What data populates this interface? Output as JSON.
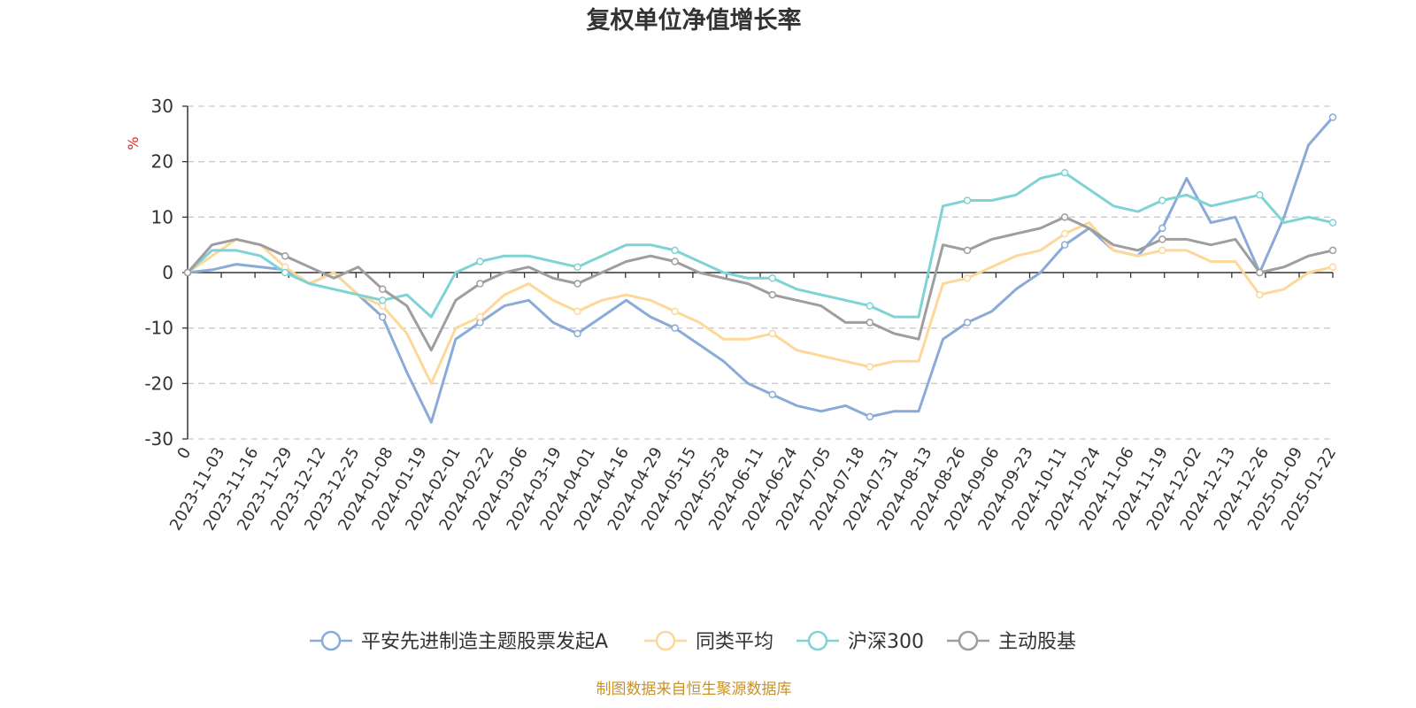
{
  "chart_data": {
    "type": "line",
    "title": "复权单位净值增长率",
    "ylabel": "%",
    "ylim": [
      -30,
      30
    ],
    "yticks": [
      30,
      20,
      10,
      0,
      -10,
      -20,
      -30
    ],
    "grid": true,
    "legend_position": "bottom",
    "source": "制图数据来自恒生聚源数据库",
    "x_tick_labels": [
      "0",
      "2023-11-03",
      "2023-11-16",
      "2023-11-29",
      "2023-12-12",
      "2023-12-25",
      "2024-01-08",
      "2024-01-19",
      "2024-02-01",
      "2024-02-22",
      "2024-03-06",
      "2024-03-19",
      "2024-04-01",
      "2024-04-16",
      "2024-04-29",
      "2024-05-15",
      "2024-05-28",
      "2024-06-11",
      "2024-06-24",
      "2024-07-05",
      "2024-07-18",
      "2024-07-31",
      "2024-08-13",
      "2024-08-26",
      "2024-09-06",
      "2024-09-23",
      "2024-10-11",
      "2024-10-24",
      "2024-11-06",
      "2024-11-19",
      "2024-12-02",
      "2024-12-13",
      "2024-12-26",
      "2025-01-09",
      "2025-01-22"
    ],
    "series": [
      {
        "name": "平安先进制造主题股票发起A",
        "color": "#8aaad8",
        "values": [
          0,
          0.5,
          1.5,
          1,
          0.5,
          -2,
          0,
          -4,
          -8,
          -18,
          -27,
          -12,
          -9,
          -6,
          -5,
          -9,
          -11,
          -8,
          -5,
          -8,
          -10,
          -13,
          -16,
          -20,
          -22,
          -24,
          -25,
          -24,
          -26,
          -25,
          -25,
          -12,
          -9,
          -7,
          -3,
          0,
          5,
          8,
          4,
          3,
          8,
          17,
          9,
          10,
          0,
          10,
          23,
          28
        ]
      },
      {
        "name": "同类平均",
        "color": "#fdd899",
        "values": [
          0,
          3,
          6,
          5,
          1,
          -2,
          0,
          -4,
          -6,
          -11,
          -20,
          -10,
          -8,
          -4,
          -2,
          -5,
          -7,
          -5,
          -4,
          -5,
          -7,
          -9,
          -12,
          -12,
          -11,
          -14,
          -15,
          -16,
          -17,
          -16,
          -16,
          -2,
          -1,
          1,
          3,
          4,
          7,
          9,
          4,
          3,
          4,
          4,
          2,
          2,
          -4,
          -3,
          0,
          1
        ]
      },
      {
        "name": "沪深300",
        "color": "#7fd3d4",
        "values": [
          0,
          4,
          4,
          3,
          0,
          -2,
          -3,
          -4,
          -5,
          -4,
          -8,
          0,
          2,
          3,
          3,
          2,
          1,
          3,
          5,
          5,
          4,
          2,
          0,
          -1,
          -1,
          -3,
          -4,
          -5,
          -6,
          -8,
          -8,
          12,
          13,
          13,
          14,
          17,
          18,
          15,
          12,
          11,
          13,
          14,
          12,
          13,
          14,
          9,
          10,
          9
        ]
      },
      {
        "name": "主动股基",
        "color": "#9e9e9e",
        "values": [
          0,
          5,
          6,
          5,
          3,
          1,
          -1,
          1,
          -3,
          -6,
          -14,
          -5,
          -2,
          0,
          1,
          -1,
          -2,
          0,
          2,
          3,
          2,
          0,
          -1,
          -2,
          -4,
          -5,
          -6,
          -9,
          -9,
          -11,
          -12,
          5,
          4,
          6,
          7,
          8,
          10,
          8,
          5,
          4,
          6,
          6,
          5,
          6,
          0,
          1,
          3,
          4
        ]
      }
    ]
  }
}
